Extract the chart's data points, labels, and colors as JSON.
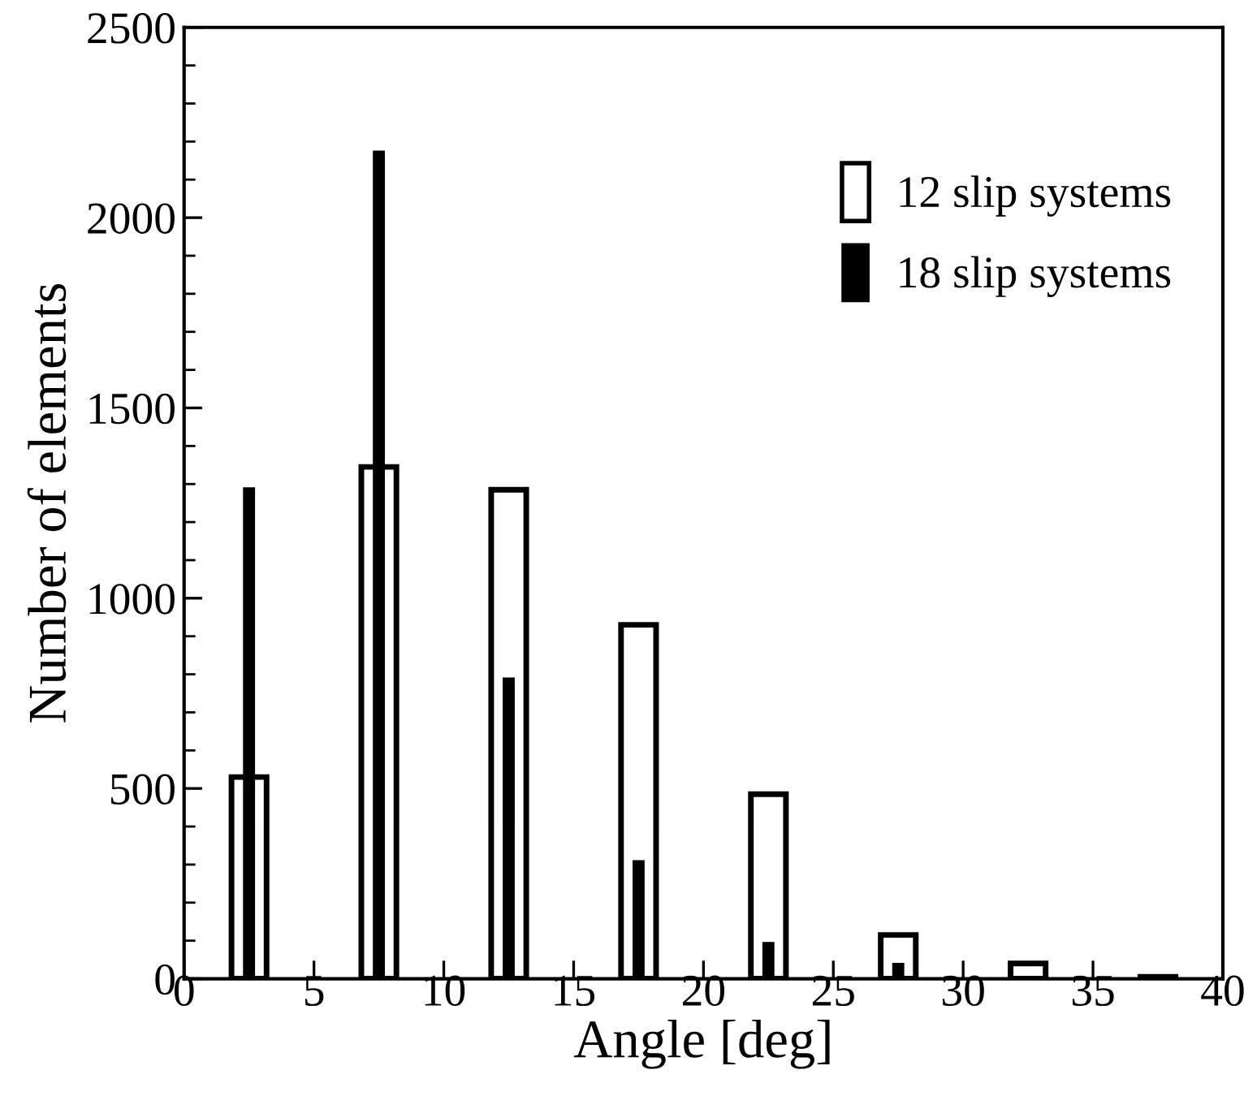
{
  "chart_data": {
    "type": "bar",
    "xlabel": "Angle [deg]",
    "ylabel": "Number of elements",
    "xlim": [
      0,
      40
    ],
    "xticks": [
      0,
      5,
      10,
      15,
      20,
      25,
      30,
      35,
      40
    ],
    "ylim": [
      0,
      2500
    ],
    "yticks": [
      0,
      500,
      1000,
      1500,
      2000,
      2500
    ],
    "grid": false,
    "legend": "top right",
    "series": [
      {
        "name": "12 slip systems",
        "color": "#ffffff",
        "x": [
          2.5,
          7.5,
          12.5,
          17.5,
          22.5,
          27.5,
          32.5,
          37.5
        ],
        "values": [
          530,
          1345,
          1285,
          930,
          485,
          115,
          40,
          5
        ]
      },
      {
        "name": "18 slip systems",
        "color": "#000000",
        "x": [
          2.5,
          7.5,
          12.5,
          17.5,
          22.5,
          27.5,
          32.5,
          37.5
        ],
        "values": [
          1290,
          2175,
          790,
          310,
          95,
          40,
          5,
          0
        ]
      }
    ]
  }
}
